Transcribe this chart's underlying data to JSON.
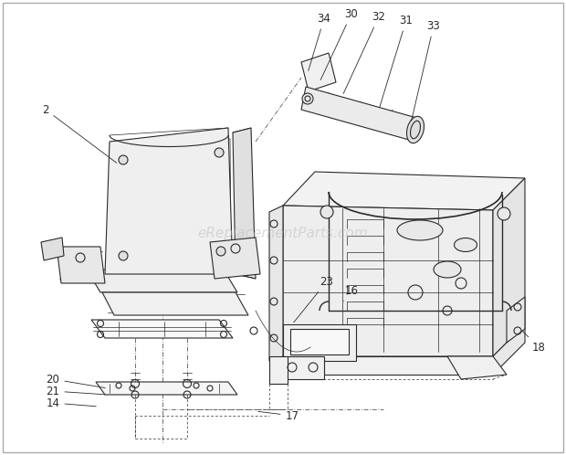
{
  "background_color": "#ffffff",
  "border_color": "#aaaaaa",
  "watermark": "eReplacementParts.com",
  "watermark_color": "#bbbbbb",
  "line_color": "#2a2a2a",
  "figsize": [
    6.2,
    4.98
  ],
  "dpi": 100
}
